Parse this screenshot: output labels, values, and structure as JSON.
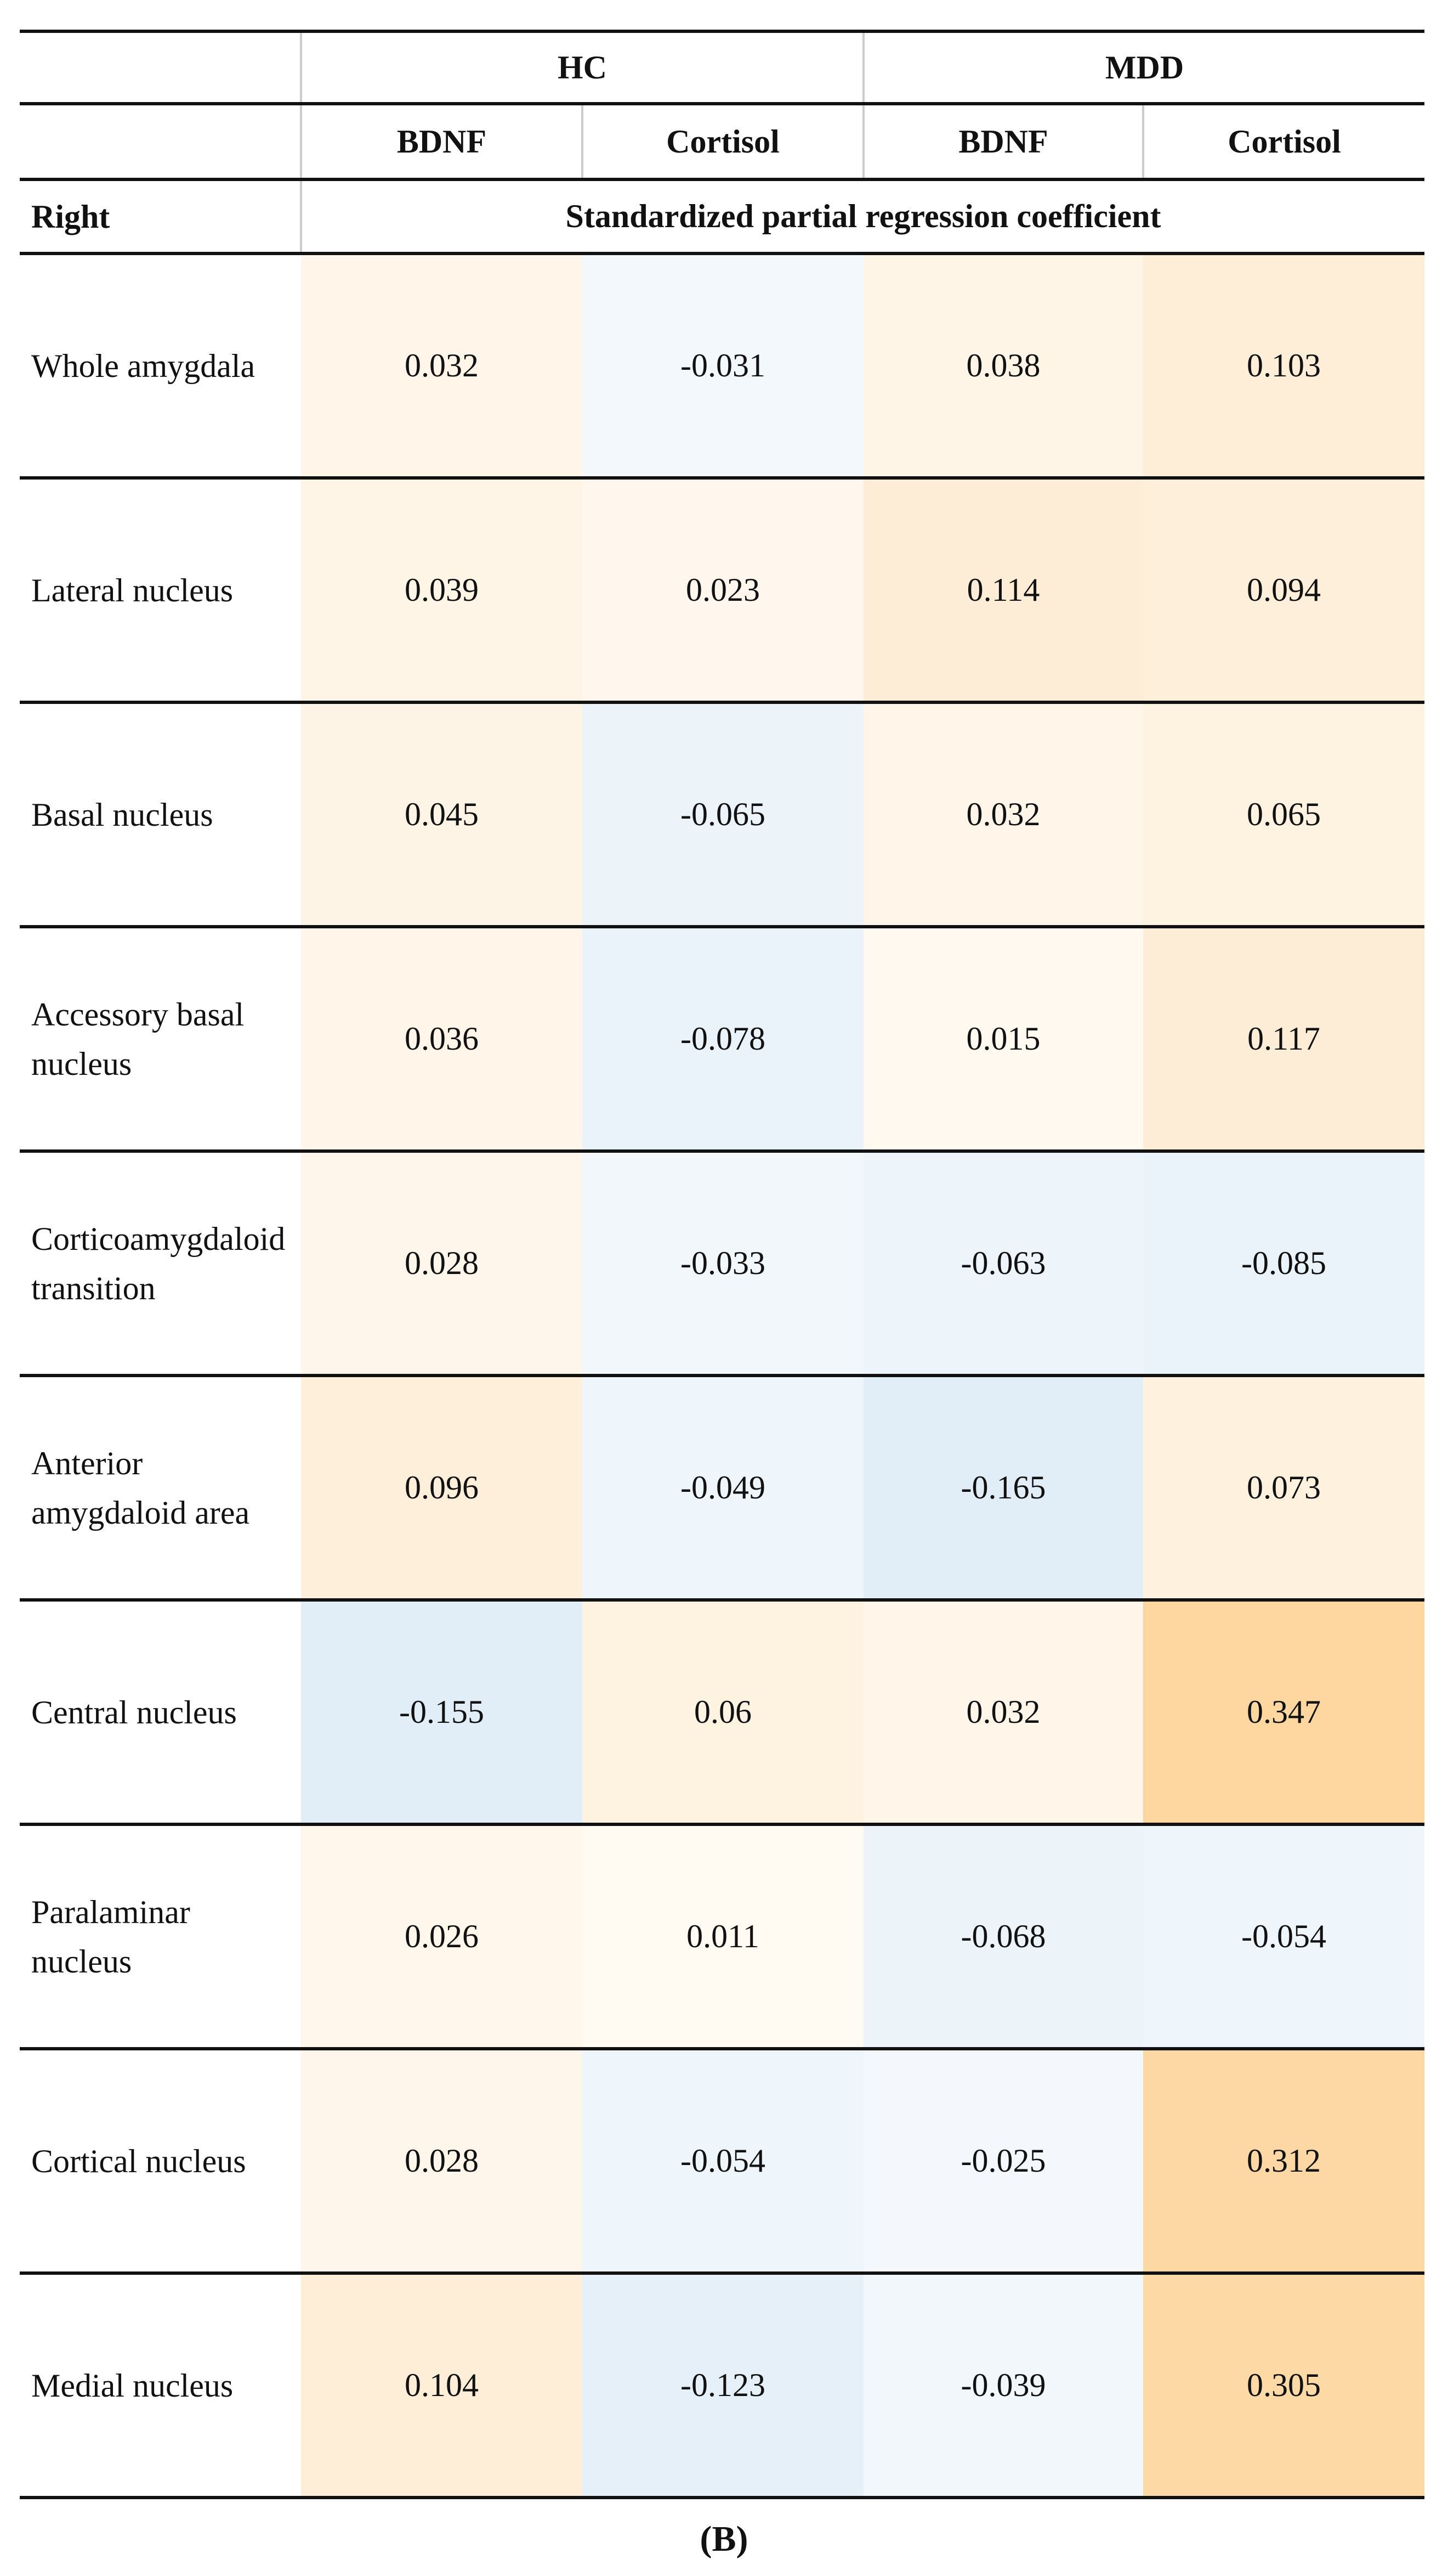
{
  "header": {
    "groups": [
      "HC",
      "MDD"
    ],
    "subheaders": [
      "BDNF",
      "Cortisol",
      "BDNF",
      "Cortisol"
    ],
    "row_header": "Right",
    "span_label": "Standardized partial regression coefficient"
  },
  "table": {
    "rows": [
      {
        "label": "Whole amygdala",
        "values": [
          0.032,
          -0.031,
          0.038,
          0.103
        ]
      },
      {
        "label": "Lateral nucleus",
        "values": [
          0.039,
          0.023,
          0.114,
          0.094
        ]
      },
      {
        "label": "Basal nucleus",
        "values": [
          0.045,
          -0.065,
          0.032,
          0.065
        ]
      },
      {
        "label": "Accessory basal nucleus",
        "values": [
          0.036,
          -0.078,
          0.015,
          0.117
        ]
      },
      {
        "label": "Corticoamygdaloid transition",
        "values": [
          0.028,
          -0.033,
          -0.063,
          -0.085
        ]
      },
      {
        "label": "Anterior amygdaloid area",
        "values": [
          0.096,
          -0.049,
          -0.165,
          0.073
        ]
      },
      {
        "label": "Central nucleus",
        "values": [
          -0.155,
          0.06,
          0.032,
          0.347
        ]
      },
      {
        "label": "Paralaminar nucleus",
        "values": [
          0.026,
          0.011,
          -0.068,
          -0.054
        ]
      },
      {
        "label": "Cortical nucleus",
        "values": [
          0.028,
          -0.054,
          -0.025,
          0.312
        ]
      },
      {
        "label": "Medial nucleus",
        "values": [
          0.104,
          -0.123,
          -0.039,
          0.305
        ]
      }
    ]
  },
  "caption": "(B)"
}
